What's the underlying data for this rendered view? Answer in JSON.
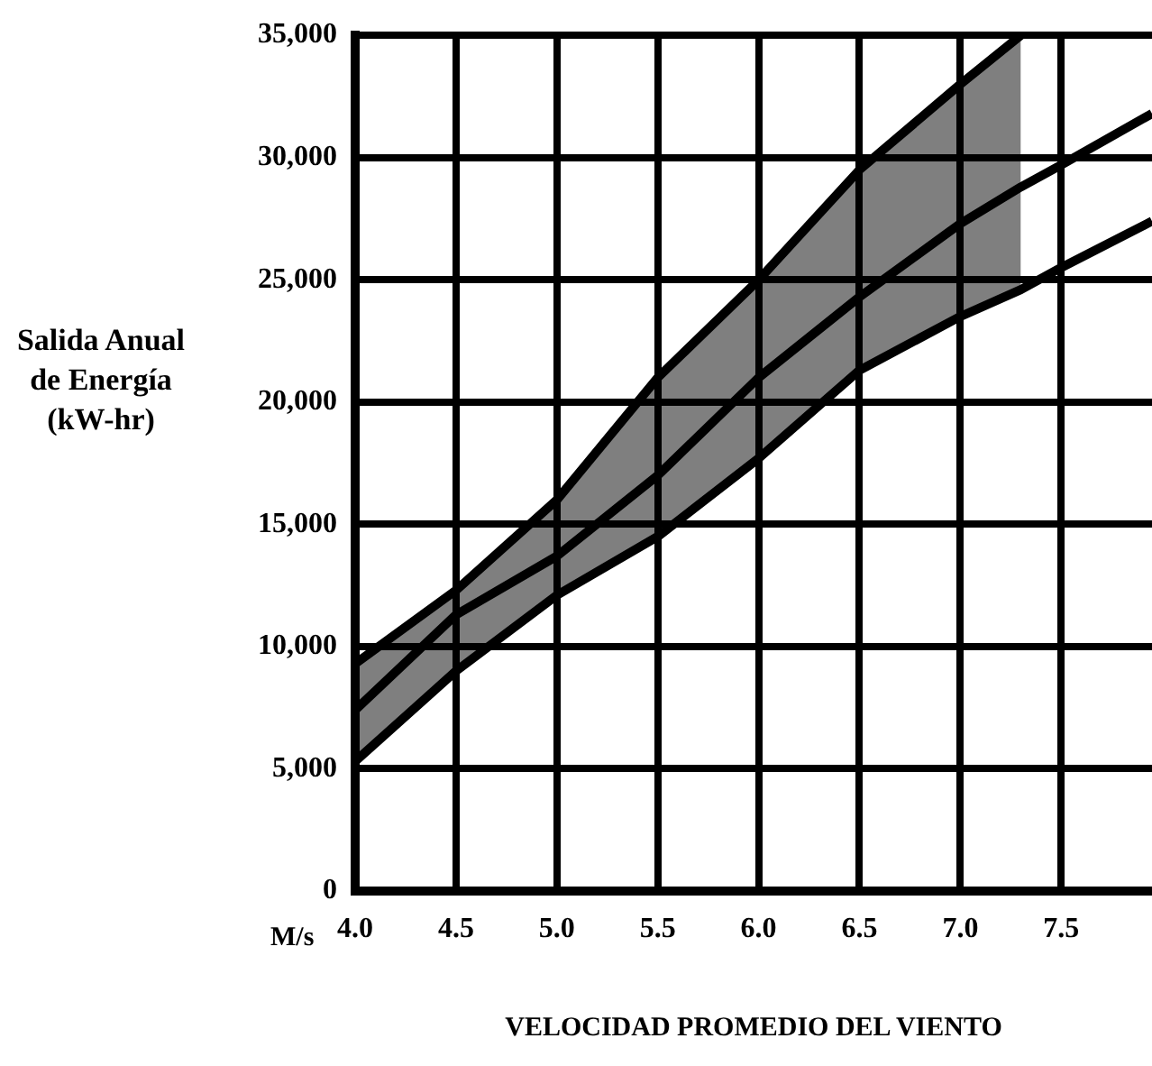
{
  "chart_data": {
    "type": "line",
    "xlabel": "VELOCIDAD PROMEDIO DEL VIENTO",
    "ylabel": "Salida Anual de Energía (kW-hr)",
    "annotations": [
      "M/s"
    ],
    "xlim": [
      4,
      7.95
    ],
    "xticks": [
      {
        "value": 4,
        "label": "4.0"
      },
      {
        "value": 4.5,
        "label": "4.5"
      },
      {
        "value": 5,
        "label": "5.0"
      },
      {
        "value": 5.5,
        "label": "5.5"
      },
      {
        "value": 6,
        "label": "6.0"
      },
      {
        "value": 6.5,
        "label": "6.5"
      },
      {
        "value": 7,
        "label": "7.0"
      },
      {
        "value": 7.5,
        "label": "7.5"
      }
    ],
    "ylim": [
      0,
      35000
    ],
    "yticks": [
      0,
      {
        "value": 5000,
        "label": "5,000"
      },
      {
        "value": 10000,
        "label": "10,000"
      },
      {
        "value": 15000,
        "label": "15,000"
      },
      {
        "value": 20000,
        "label": "20,000"
      },
      {
        "value": 25000,
        "label": "25,000"
      },
      {
        "value": 30000,
        "label": "30,000"
      },
      {
        "value": 35000,
        "label": "35,000"
      }
    ],
    "grid": true,
    "legend": false,
    "marker": "none",
    "line_style": "solid",
    "x": [
      4.0,
      4.5,
      5.0,
      5.5,
      6.0,
      6.5,
      7.0,
      7.3,
      7.5,
      7.95
    ],
    "series": [
      {
        "color": "#000000",
        "values": [
          7400,
          11300,
          13700,
          17000,
          21000,
          24300,
          27300,
          28800,
          29700,
          31800
        ],
        "lower": [
          5300,
          9000,
          12100,
          14500,
          17700,
          21300,
          23500,
          24600,
          null,
          null
        ],
        "upper": [
          9300,
          12300,
          16000,
          21000,
          25000,
          29500,
          33000,
          35000,
          null,
          null
        ]
      },
      {
        "color": "#000000",
        "x": [
          4.0,
          4.5,
          5.0,
          5.5,
          6.0,
          6.5,
          7.0,
          7.3
        ],
        "values": [
          9300,
          12300,
          16000,
          21000,
          25000,
          29500,
          33000,
          35000
        ]
      },
      {
        "color": "#000000",
        "values": [
          5300,
          9000,
          12100,
          14500,
          17700,
          21300,
          23500,
          24600,
          25500,
          27400
        ]
      }
    ]
  }
}
